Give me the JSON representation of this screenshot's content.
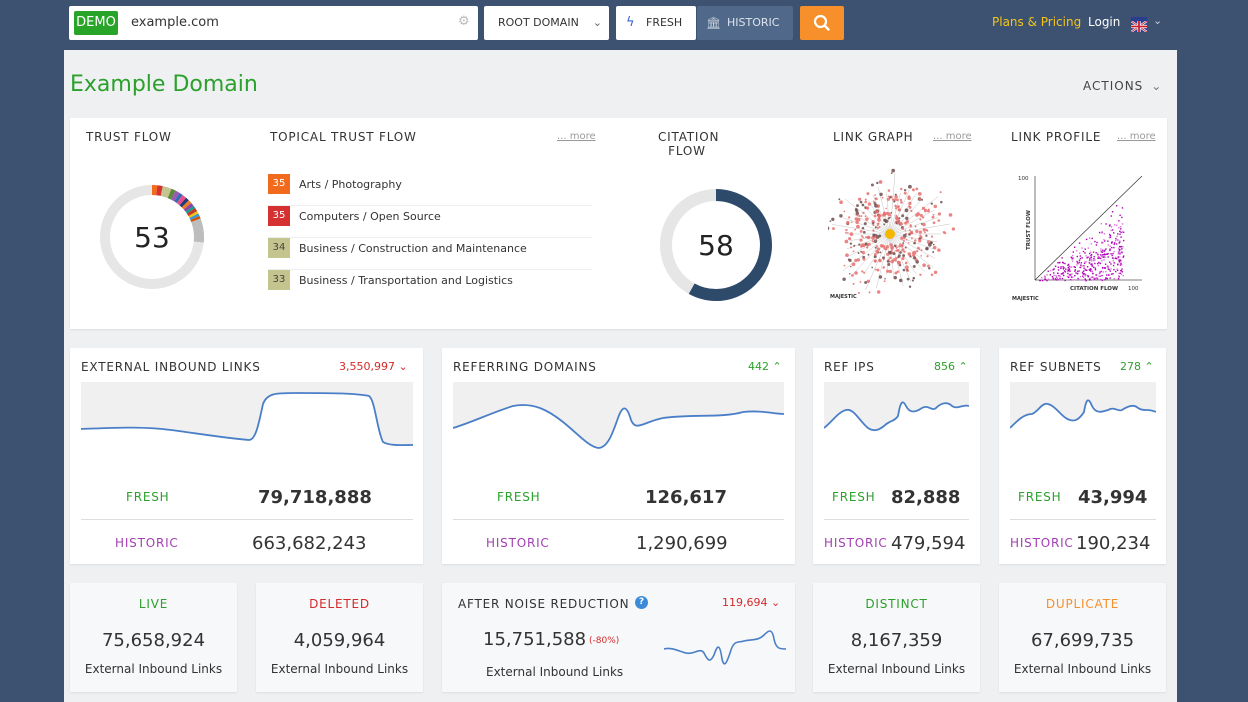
{
  "topbar": {
    "demo_badge": "DEMO",
    "search_value": "example.com",
    "scope_dropdown": "ROOT DOMAIN",
    "fresh_label": "FRESH",
    "historic_label": "HISTORIC",
    "plans_link": "Plans & Pricing",
    "login_link": "Login"
  },
  "page": {
    "title": "Example Domain",
    "actions_label": "ACTIONS"
  },
  "summary": {
    "trust_flow": {
      "label": "TRUST FLOW",
      "value": "53"
    },
    "topical": {
      "label": "TOPICAL TRUST FLOW",
      "more": "... more",
      "items": [
        {
          "score": "35",
          "name": "Arts / Photography",
          "color": "#f26b1d"
        },
        {
          "score": "35",
          "name": "Computers / Open Source",
          "color": "#d63131"
        },
        {
          "score": "34",
          "name": "Business / Construction and Maintenance",
          "color": "#c3c48e"
        },
        {
          "score": "33",
          "name": "Business / Transportation and Logistics",
          "color": "#c3c48e"
        }
      ]
    },
    "citation_flow": {
      "label_line1": "CITATION",
      "label_line2": "FLOW",
      "value": "58",
      "fraction": 0.58
    },
    "link_graph": {
      "label": "LINK GRAPH",
      "more": "... more",
      "logo": "MAJESTIC"
    },
    "link_profile": {
      "label": "LINK PROFILE",
      "more": "... more",
      "y_axis": "TRUST FLOW",
      "x_axis": "CITATION FLOW",
      "y_max": "100",
      "x_max": "100",
      "logo": "MAJESTIC"
    }
  },
  "stats": [
    {
      "title": "EXTERNAL INBOUND LINKS",
      "delta": "3,550,997",
      "delta_dir": "down",
      "fresh_label": "FRESH",
      "fresh": "79,718,888",
      "historic_label": "HISTORIC",
      "historic": "663,682,243"
    },
    {
      "title": "REFERRING DOMAINS",
      "delta": "442",
      "delta_dir": "up",
      "fresh_label": "FRESH",
      "fresh": "126,617",
      "historic_label": "HISTORIC",
      "historic": "1,290,699"
    },
    {
      "title": "REF IPS",
      "delta": "856",
      "delta_dir": "up",
      "fresh_label": "FRESH",
      "fresh": "82,888",
      "historic_label": "HISTORIC",
      "historic": "479,594"
    },
    {
      "title": "REF SUBNETS",
      "delta": "278",
      "delta_dir": "up",
      "fresh_label": "FRESH",
      "fresh": "43,994",
      "historic_label": "HISTORIC",
      "historic": "190,234"
    }
  ],
  "bottom": {
    "live": {
      "title": "LIVE",
      "value": "75,658,924",
      "sub": "External Inbound Links"
    },
    "deleted": {
      "title": "DELETED",
      "value": "4,059,964",
      "sub": "External Inbound Links"
    },
    "noise": {
      "title": "AFTER NOISE REDUCTION",
      "delta": "119,694",
      "value": "15,751,588",
      "pct": "(-80%)",
      "sub": "External Inbound Links"
    },
    "distinct": {
      "title": "DISTINCT",
      "value": "8,167,359",
      "sub": "External Inbound Links"
    },
    "duplicate": {
      "title": "DUPLICATE",
      "value": "67,699,735",
      "sub": "External Inbound Links"
    }
  },
  "colors": {
    "green": "#2ca02c",
    "red": "#d42a2a",
    "purple": "#a33fb2",
    "orange": "#f7902a",
    "navy": "#2d4a6a",
    "line": "#4a7fc8"
  }
}
